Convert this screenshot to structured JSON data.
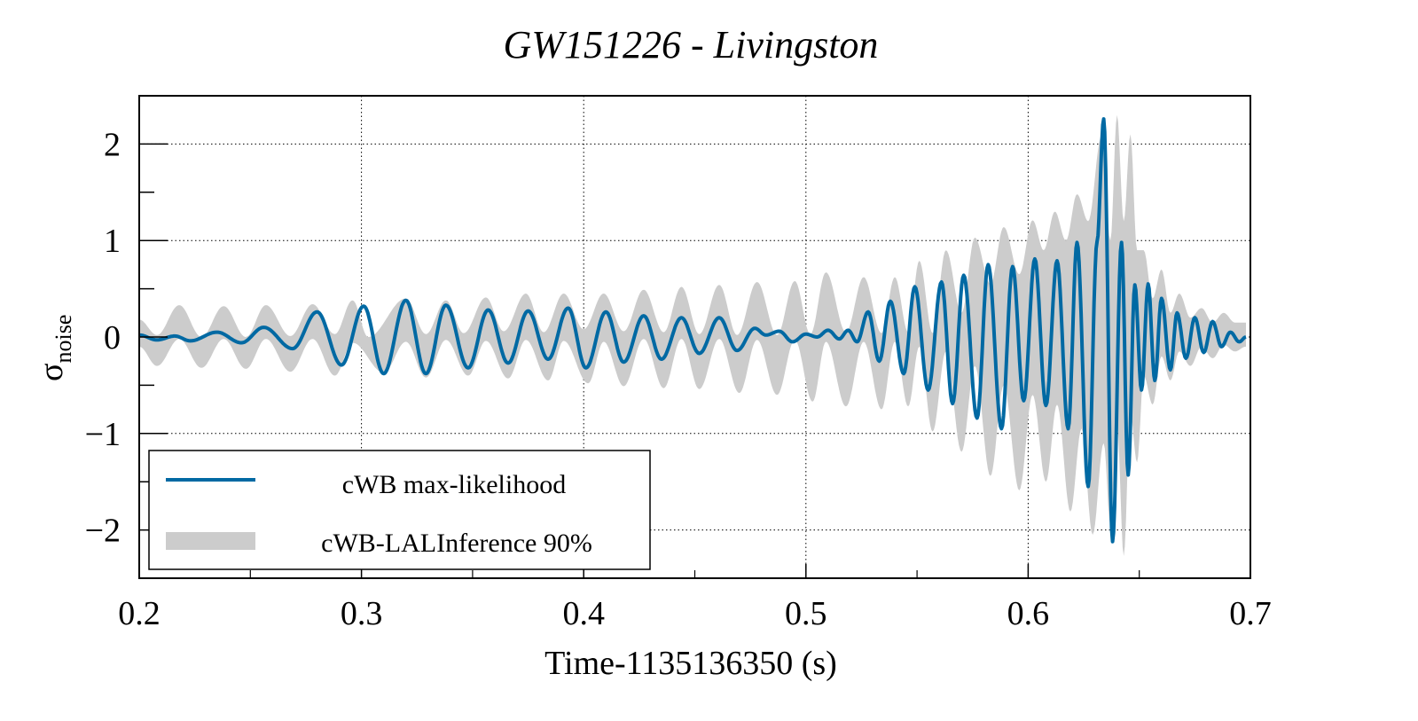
{
  "chart_data": {
    "type": "line",
    "title": "GW151226 - Livingston",
    "xlabel": "Time-1135136350 (s)",
    "ylabel": "σ",
    "ylabel_subscript": "noise",
    "xlim": [
      0.2,
      0.7
    ],
    "ylim": [
      -2.5,
      2.5
    ],
    "grid": true,
    "grid_style": "dotted",
    "x_ticks": [
      0.2,
      0.3,
      0.4,
      0.5,
      0.6,
      0.7
    ],
    "x_tick_labels": [
      "0.2",
      "0.3",
      "0.4",
      "0.5",
      "0.6",
      "0.7"
    ],
    "x_minor_step": 0.05,
    "y_ticks": [
      -2,
      -1,
      0,
      1,
      2
    ],
    "y_tick_labels": [
      "−2",
      "−1",
      "0",
      "1",
      "2"
    ],
    "y_minor_step": 0.5,
    "legend": {
      "placement": "bottom-left",
      "entries": [
        {
          "label": "cWB max-likelihood",
          "kind": "line",
          "color": "#0069a3"
        },
        {
          "label": "cWB-LALInference 90%",
          "kind": "band",
          "color": "#cccccc"
        }
      ]
    },
    "series": [
      {
        "name": "cWB max-likelihood",
        "kind": "line",
        "color": "#0069a3",
        "extrema": [
          [
            0.2,
            0.02
          ],
          [
            0.208,
            -0.03
          ],
          [
            0.216,
            0.01
          ],
          [
            0.223,
            -0.04
          ],
          [
            0.235,
            0.05
          ],
          [
            0.246,
            -0.06
          ],
          [
            0.256,
            0.1
          ],
          [
            0.269,
            -0.12
          ],
          [
            0.28,
            0.26
          ],
          [
            0.291,
            -0.29
          ],
          [
            0.301,
            0.32
          ],
          [
            0.31,
            -0.38
          ],
          [
            0.32,
            0.38
          ],
          [
            0.329,
            -0.38
          ],
          [
            0.338,
            0.33
          ],
          [
            0.348,
            -0.32
          ],
          [
            0.357,
            0.28
          ],
          [
            0.366,
            -0.27
          ],
          [
            0.375,
            0.27
          ],
          [
            0.384,
            -0.23
          ],
          [
            0.393,
            0.3
          ],
          [
            0.401,
            -0.32
          ],
          [
            0.41,
            0.26
          ],
          [
            0.418,
            -0.26
          ],
          [
            0.427,
            0.22
          ],
          [
            0.435,
            -0.23
          ],
          [
            0.444,
            0.2
          ],
          [
            0.452,
            -0.17
          ],
          [
            0.461,
            0.2
          ],
          [
            0.469,
            -0.14
          ],
          [
            0.477,
            0.09
          ],
          [
            0.482,
            0.02
          ],
          [
            0.488,
            0.06
          ],
          [
            0.494,
            -0.05
          ],
          [
            0.5,
            0.03
          ],
          [
            0.505,
            0.0
          ],
          [
            0.51,
            0.07
          ],
          [
            0.515,
            -0.02
          ],
          [
            0.519,
            0.07
          ],
          [
            0.523,
            -0.05
          ],
          [
            0.528,
            0.26
          ],
          [
            0.533,
            -0.25
          ],
          [
            0.538,
            0.37
          ],
          [
            0.544,
            -0.38
          ],
          [
            0.549,
            0.52
          ],
          [
            0.555,
            -0.55
          ],
          [
            0.561,
            0.57
          ],
          [
            0.566,
            -0.69
          ],
          [
            0.571,
            0.64
          ],
          [
            0.577,
            -0.84
          ],
          [
            0.582,
            0.75
          ],
          [
            0.588,
            -0.95
          ],
          [
            0.593,
            0.73
          ],
          [
            0.598,
            -0.66
          ],
          [
            0.603,
            0.81
          ],
          [
            0.608,
            -0.71
          ],
          [
            0.613,
            0.79
          ],
          [
            0.618,
            -0.95
          ],
          [
            0.622,
            0.98
          ],
          [
            0.627,
            -1.55
          ],
          [
            0.631,
            0.99
          ],
          [
            0.634,
            2.26
          ],
          [
            0.638,
            -2.12
          ],
          [
            0.642,
            0.98
          ],
          [
            0.645,
            -1.43
          ],
          [
            0.648,
            0.54
          ],
          [
            0.651,
            -0.55
          ],
          [
            0.654,
            0.55
          ],
          [
            0.657,
            -0.45
          ],
          [
            0.66,
            0.4
          ],
          [
            0.664,
            -0.34
          ],
          [
            0.667,
            0.25
          ],
          [
            0.671,
            -0.22
          ],
          [
            0.675,
            0.2
          ],
          [
            0.679,
            -0.16
          ],
          [
            0.683,
            0.16
          ],
          [
            0.687,
            -0.1
          ],
          [
            0.691,
            0.05
          ],
          [
            0.695,
            -0.05
          ],
          [
            0.698,
            0.0
          ]
        ]
      },
      {
        "name": "cWB-LALInference 90%",
        "kind": "band",
        "color": "#cccccc",
        "upper_extrema": [
          [
            0.2,
            0.18
          ],
          [
            0.208,
            0.02
          ],
          [
            0.218,
            0.33
          ],
          [
            0.228,
            0.0
          ],
          [
            0.238,
            0.32
          ],
          [
            0.248,
            0.0
          ],
          [
            0.257,
            0.33
          ],
          [
            0.268,
            0.01
          ],
          [
            0.278,
            0.34
          ],
          [
            0.288,
            0.03
          ],
          [
            0.296,
            0.38
          ],
          [
            0.303,
            0.0
          ],
          [
            0.32,
            0.4
          ],
          [
            0.329,
            0.03
          ],
          [
            0.338,
            0.38
          ],
          [
            0.346,
            0.04
          ],
          [
            0.356,
            0.41
          ],
          [
            0.364,
            0.06
          ],
          [
            0.374,
            0.45
          ],
          [
            0.382,
            0.05
          ],
          [
            0.391,
            0.45
          ],
          [
            0.4,
            0.08
          ],
          [
            0.409,
            0.45
          ],
          [
            0.418,
            0.06
          ],
          [
            0.427,
            0.49
          ],
          [
            0.436,
            0.05
          ],
          [
            0.444,
            0.52
          ],
          [
            0.452,
            0.03
          ],
          [
            0.461,
            0.54
          ],
          [
            0.469,
            0.02
          ],
          [
            0.478,
            0.57
          ],
          [
            0.487,
            0.02
          ],
          [
            0.495,
            0.58
          ],
          [
            0.502,
            0.03
          ],
          [
            0.509,
            0.67
          ],
          [
            0.518,
            0.05
          ],
          [
            0.526,
            0.62
          ],
          [
            0.534,
            0.04
          ],
          [
            0.54,
            0.62
          ],
          [
            0.546,
            0.05
          ],
          [
            0.551,
            0.79
          ],
          [
            0.557,
            0.04
          ],
          [
            0.563,
            0.9
          ],
          [
            0.57,
            0.25
          ],
          [
            0.576,
            1.03
          ],
          [
            0.583,
            0.55
          ],
          [
            0.589,
            1.14
          ],
          [
            0.596,
            0.65
          ],
          [
            0.602,
            1.21
          ],
          [
            0.607,
            0.9
          ],
          [
            0.612,
            1.3
          ],
          [
            0.617,
            1.0
          ],
          [
            0.622,
            1.48
          ],
          [
            0.627,
            1.2
          ],
          [
            0.633,
            2.08
          ],
          [
            0.637,
            1.0
          ],
          [
            0.64,
            2.3
          ],
          [
            0.643,
            1.2
          ],
          [
            0.646,
            2.1
          ],
          [
            0.649,
            0.9
          ],
          [
            0.652,
            0.9
          ],
          [
            0.656,
            0.4
          ],
          [
            0.66,
            0.7
          ],
          [
            0.664,
            0.25
          ],
          [
            0.668,
            0.45
          ],
          [
            0.673,
            0.2
          ],
          [
            0.678,
            0.3
          ],
          [
            0.683,
            0.15
          ],
          [
            0.688,
            0.25
          ],
          [
            0.693,
            0.15
          ],
          [
            0.698,
            0.15
          ]
        ],
        "lower_extrema": [
          [
            0.2,
            -0.1
          ],
          [
            0.208,
            -0.3
          ],
          [
            0.218,
            -0.02
          ],
          [
            0.228,
            -0.32
          ],
          [
            0.238,
            -0.02
          ],
          [
            0.248,
            -0.33
          ],
          [
            0.257,
            -0.02
          ],
          [
            0.268,
            -0.36
          ],
          [
            0.278,
            -0.02
          ],
          [
            0.288,
            -0.4
          ],
          [
            0.296,
            -0.06
          ],
          [
            0.31,
            -0.37
          ],
          [
            0.32,
            -0.05
          ],
          [
            0.329,
            -0.42
          ],
          [
            0.338,
            -0.03
          ],
          [
            0.348,
            -0.4
          ],
          [
            0.356,
            -0.04
          ],
          [
            0.366,
            -0.43
          ],
          [
            0.374,
            -0.03
          ],
          [
            0.384,
            -0.45
          ],
          [
            0.391,
            -0.04
          ],
          [
            0.402,
            -0.48
          ],
          [
            0.409,
            -0.05
          ],
          [
            0.418,
            -0.51
          ],
          [
            0.427,
            -0.02
          ],
          [
            0.436,
            -0.53
          ],
          [
            0.444,
            -0.02
          ],
          [
            0.452,
            -0.54
          ],
          [
            0.461,
            -0.02
          ],
          [
            0.47,
            -0.58
          ],
          [
            0.478,
            -0.03
          ],
          [
            0.487,
            -0.6
          ],
          [
            0.495,
            -0.03
          ],
          [
            0.503,
            -0.67
          ],
          [
            0.509,
            -0.05
          ],
          [
            0.518,
            -0.72
          ],
          [
            0.526,
            -0.05
          ],
          [
            0.534,
            -0.75
          ],
          [
            0.54,
            -0.05
          ],
          [
            0.546,
            -0.72
          ],
          [
            0.551,
            -0.1
          ],
          [
            0.557,
            -0.98
          ],
          [
            0.563,
            -0.15
          ],
          [
            0.57,
            -1.19
          ],
          [
            0.576,
            -0.3
          ],
          [
            0.583,
            -1.44
          ],
          [
            0.589,
            -0.5
          ],
          [
            0.596,
            -1.59
          ],
          [
            0.602,
            -0.6
          ],
          [
            0.608,
            -1.5
          ],
          [
            0.613,
            -0.7
          ],
          [
            0.619,
            -1.81
          ],
          [
            0.624,
            -0.95
          ],
          [
            0.629,
            -2.05
          ],
          [
            0.634,
            -1.1
          ],
          [
            0.637,
            -1.95
          ],
          [
            0.64,
            -0.9
          ],
          [
            0.643,
            -2.27
          ],
          [
            0.646,
            -0.8
          ],
          [
            0.649,
            -1.3
          ],
          [
            0.652,
            -0.4
          ],
          [
            0.656,
            -0.7
          ],
          [
            0.66,
            -0.2
          ],
          [
            0.664,
            -0.45
          ],
          [
            0.668,
            -0.15
          ],
          [
            0.673,
            -0.3
          ],
          [
            0.678,
            -0.1
          ],
          [
            0.683,
            -0.22
          ],
          [
            0.688,
            -0.08
          ],
          [
            0.693,
            -0.15
          ],
          [
            0.698,
            -0.1
          ]
        ]
      }
    ]
  }
}
